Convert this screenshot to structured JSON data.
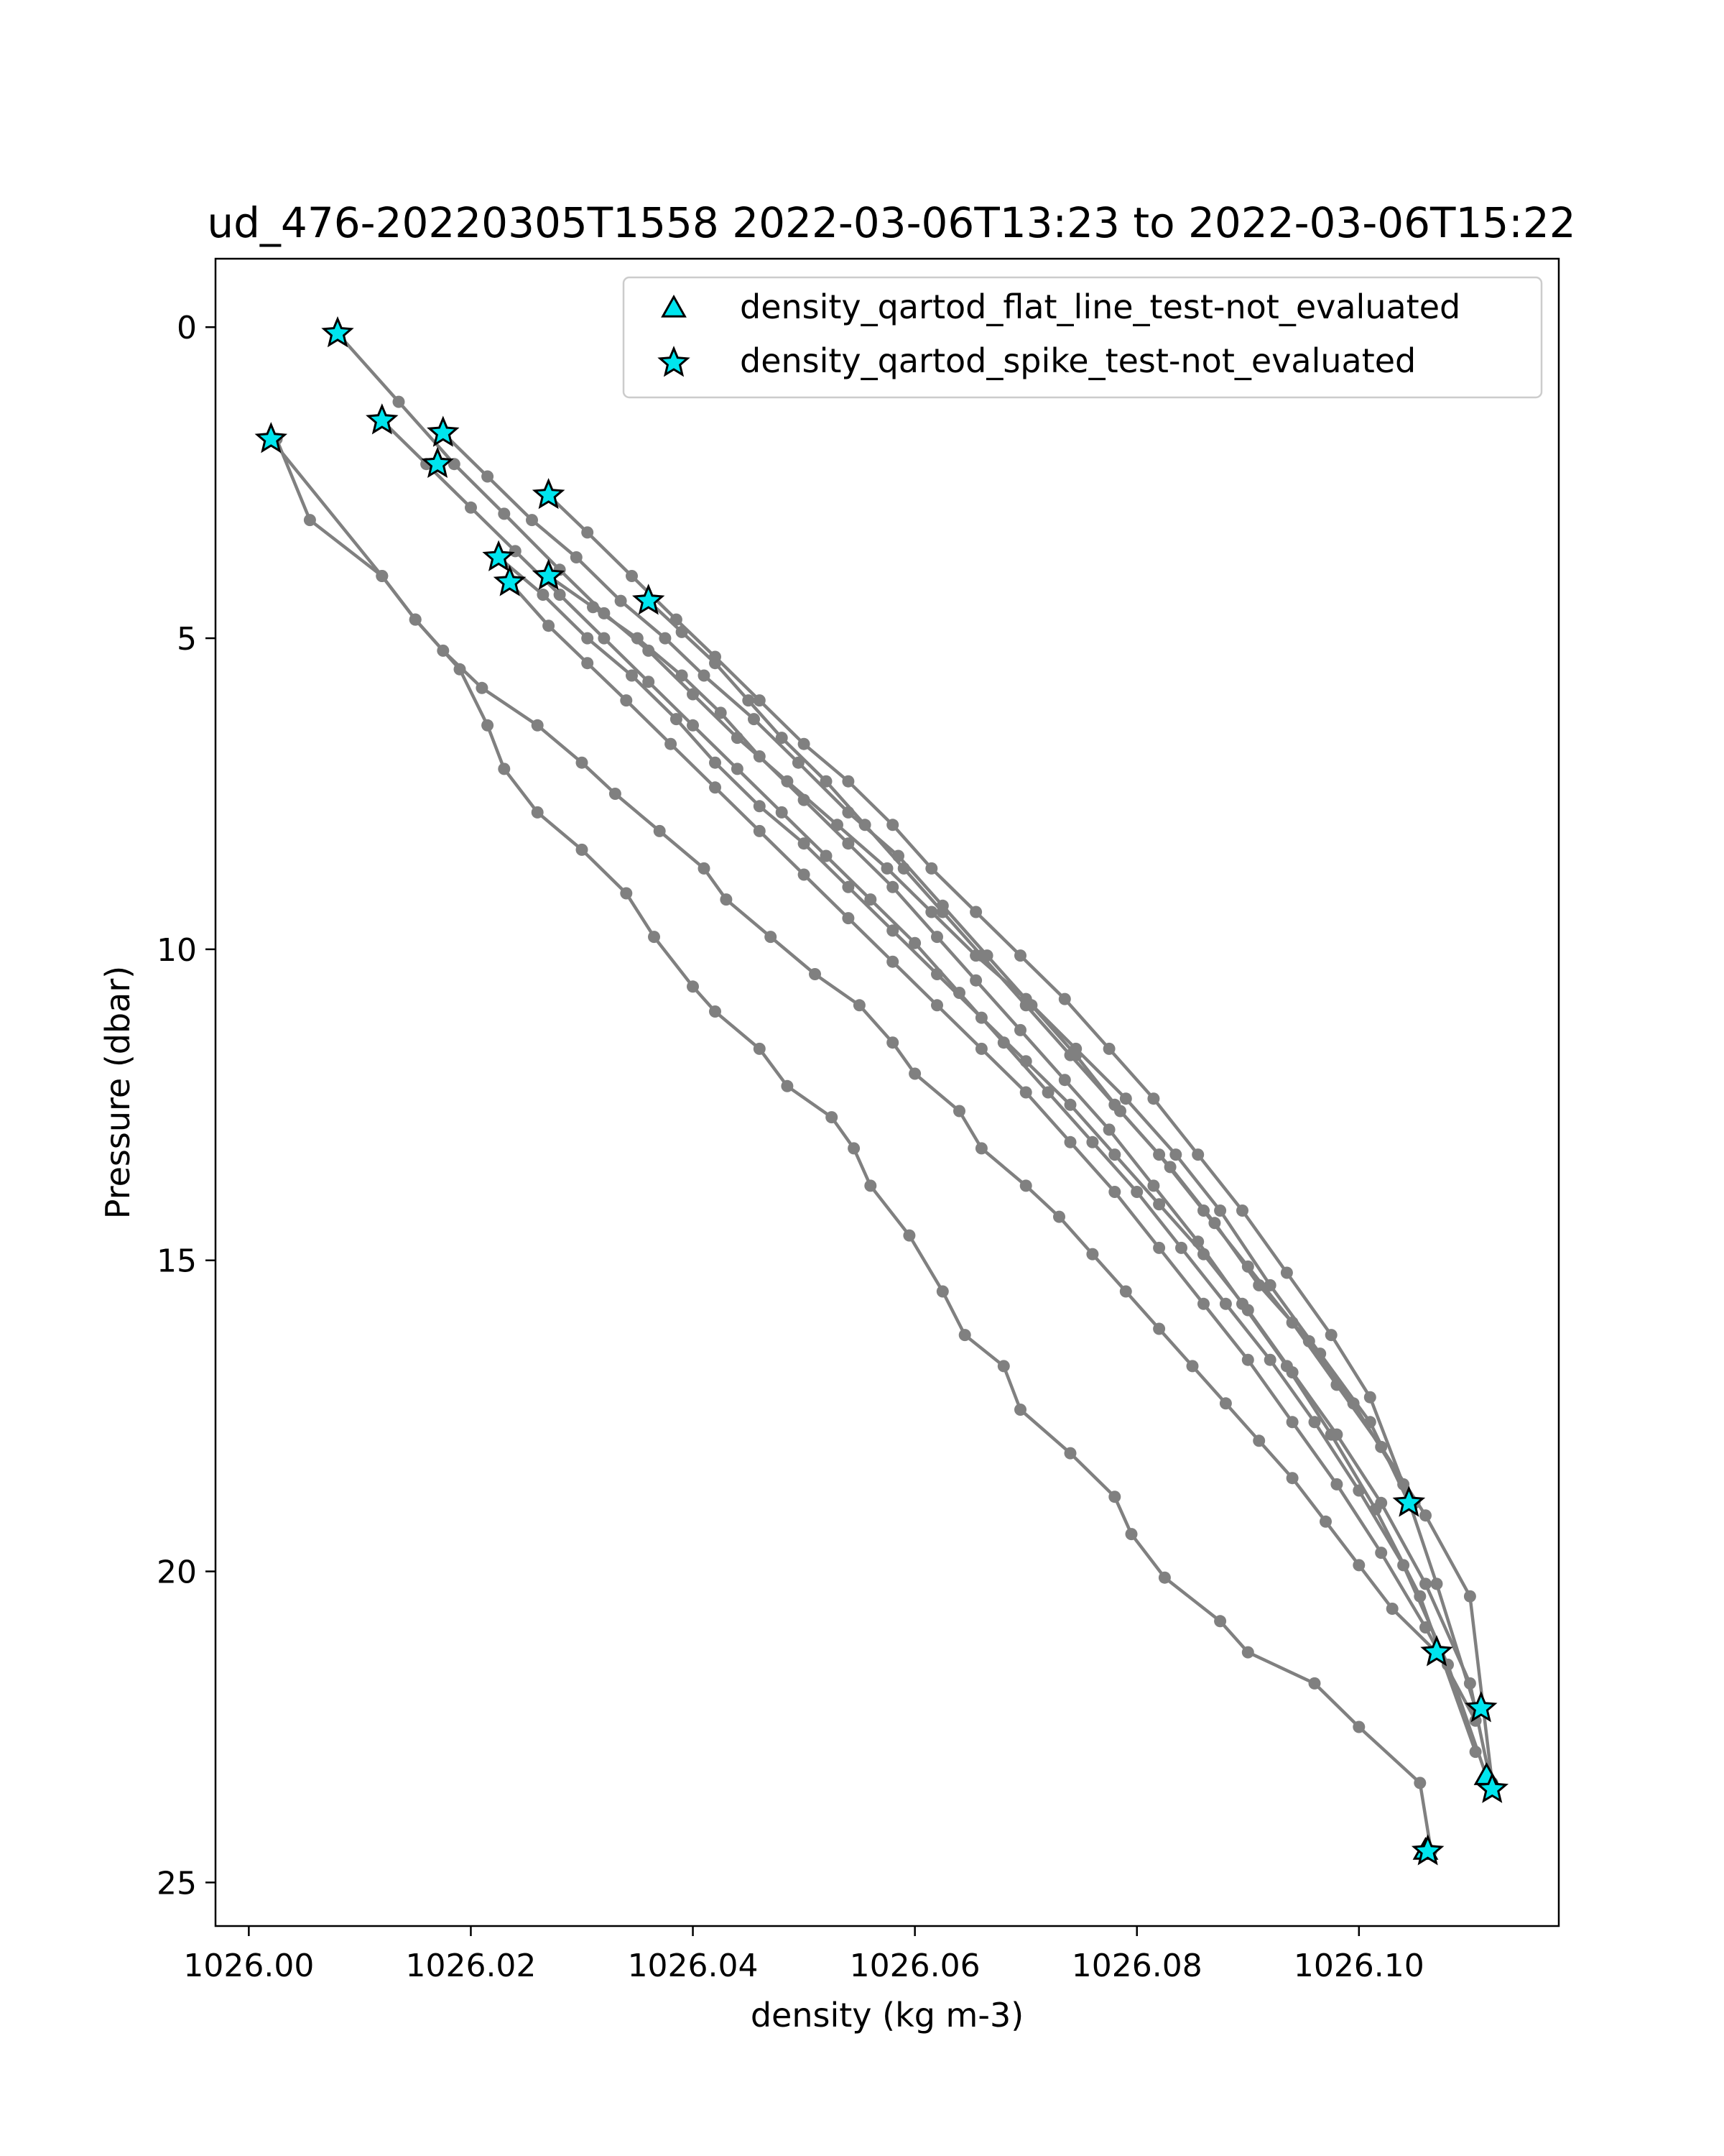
{
  "chart_data": {
    "type": "scatter",
    "title": "ud_476-20220305T1558 2022-03-06T13:23 to 2022-03-06T15:22",
    "xlabel": "density (kg m-3)",
    "ylabel": "Pressure (dbar)",
    "xlim": [
      1025.997,
      1026.118
    ],
    "ylim": [
      25.7,
      -1.1
    ],
    "y_inverted": true,
    "x_ticks": [
      1026.0,
      1026.02,
      1026.04,
      1026.06,
      1026.08,
      1026.1
    ],
    "x_tick_labels": [
      "1026.00",
      "1026.02",
      "1026.04",
      "1026.06",
      "1026.08",
      "1026.10"
    ],
    "y_ticks": [
      0,
      5,
      10,
      15,
      20,
      25
    ],
    "y_tick_labels": [
      "0",
      "5",
      "10",
      "15",
      "20",
      "25"
    ],
    "grid": false,
    "legend_position": "top-right",
    "line_color": "#808080",
    "marker_color": "#00e5ee",
    "profiles": [
      {
        "x": [
          1026.0025,
          1026.0055,
          1026.012,
          1026.015,
          1026.019,
          1026.0215,
          1026.023,
          1026.026,
          1026.03,
          1026.034,
          1026.0365,
          1026.04,
          1026.042,
          1026.046,
          1026.0485,
          1026.0525,
          1026.0545,
          1026.056,
          1026.0595,
          1026.0625,
          1026.0645,
          1026.068,
          1026.0695,
          1026.074,
          1026.078,
          1026.0795,
          1026.0825,
          1026.0875,
          1026.09,
          1026.096,
          1026.1,
          1026.1055,
          1026.1065
        ],
        "y": [
          1.8,
          3.1,
          4.0,
          4.7,
          5.5,
          6.4,
          7.1,
          7.8,
          8.4,
          9.1,
          9.8,
          10.6,
          11.0,
          11.6,
          12.2,
          12.7,
          13.2,
          13.8,
          14.6,
          15.5,
          16.2,
          16.7,
          17.4,
          18.1,
          18.8,
          19.4,
          20.1,
          20.8,
          21.3,
          21.8,
          22.5,
          23.4,
          24.5
        ]
      },
      {
        "x": [
          1026.002,
          1026.012,
          1026.015,
          1026.0175,
          1026.021,
          1026.026,
          1026.03,
          1026.033,
          1026.037,
          1026.041,
          1026.043,
          1026.047,
          1026.051,
          1026.055,
          1026.058,
          1026.06,
          1026.064,
          1026.066,
          1026.07,
          1026.073,
          1026.076,
          1026.079,
          1026.082,
          1026.085,
          1026.088,
          1026.091,
          1026.094,
          1026.097,
          1026.1,
          1026.103,
          1026.107
        ],
        "y": [
          1.8,
          4.0,
          4.7,
          5.2,
          5.8,
          6.4,
          7.0,
          7.5,
          8.1,
          8.7,
          9.2,
          9.8,
          10.4,
          10.9,
          11.5,
          12.0,
          12.6,
          13.2,
          13.8,
          14.3,
          14.9,
          15.5,
          16.1,
          16.7,
          17.3,
          17.9,
          18.5,
          19.2,
          19.9,
          20.6,
          21.3
        ]
      },
      {
        "x": [
          1026.008,
          1026.0135,
          1026.0185,
          1026.023,
          1026.028,
          1026.032,
          1026.036,
          1026.04,
          1026.044,
          1026.0485,
          1026.053,
          1026.0575,
          1026.0615,
          1026.0655,
          1026.07,
          1026.0745,
          1026.079,
          1026.0835,
          1026.0875,
          1026.092,
          1026.0965,
          1026.101,
          1026.1045
        ],
        "y": [
          0.1,
          1.2,
          2.2,
          3.0,
          3.9,
          4.6,
          5.2,
          5.9,
          6.6,
          7.3,
          8.0,
          8.7,
          9.4,
          10.1,
          10.8,
          11.6,
          12.4,
          13.3,
          14.2,
          15.4,
          16.5,
          17.6,
          18.9
        ]
      },
      {
        "x": [
          1026.0175,
          1026.0215,
          1026.0255,
          1026.0295,
          1026.0335,
          1026.0375,
          1026.041,
          1026.0455,
          1026.0495,
          1026.054,
          1026.0585,
          1026.0625,
          1026.0665,
          1026.0705,
          1026.0745,
          1026.0785,
          1026.083,
          1026.087,
          1026.091,
          1026.0955,
          1026.0995,
          1026.105
        ],
        "y": [
          1.7,
          2.4,
          3.1,
          3.7,
          4.4,
          5.0,
          5.6,
          6.3,
          7.0,
          7.8,
          8.5,
          9.3,
          10.1,
          10.9,
          11.7,
          12.6,
          13.5,
          14.4,
          15.4,
          16.3,
          17.3,
          18.9
        ]
      },
      {
        "x": [
          1026.027,
          1026.0305,
          1026.0345,
          1026.0385,
          1026.042,
          1026.046,
          1026.05,
          1026.054,
          1026.058,
          1026.0615,
          1026.0655,
          1026.0695,
          1026.0735,
          1026.0775,
          1026.0815,
          1026.0855,
          1026.0895,
          1026.0935,
          1026.0975,
          1026.101,
          1026.104,
          1026.107,
          1026.1105
        ],
        "y": [
          2.7,
          3.3,
          4.0,
          4.7,
          5.3,
          6.0,
          6.7,
          7.3,
          8.0,
          8.7,
          9.4,
          10.1,
          10.8,
          11.6,
          12.4,
          13.3,
          14.2,
          15.2,
          16.2,
          17.2,
          18.6,
          20.2,
          22.2
        ]
      },
      {
        "x": [
          1026.012,
          1026.016,
          1026.02,
          1026.024,
          1026.028,
          1026.032,
          1026.036,
          1026.04,
          1026.044,
          1026.048,
          1026.052,
          1026.056,
          1026.06,
          1026.064,
          1026.068,
          1026.072,
          1026.076,
          1026.08,
          1026.084,
          1026.088,
          1026.092,
          1026.096,
          1026.1,
          1026.104,
          1026.108,
          1026.1115
        ],
        "y": [
          1.5,
          2.2,
          2.9,
          3.6,
          4.3,
          5.0,
          5.7,
          6.4,
          7.1,
          7.8,
          8.5,
          9.2,
          9.9,
          10.7,
          11.5,
          12.3,
          13.1,
          13.9,
          14.8,
          15.7,
          16.6,
          17.6,
          18.7,
          19.9,
          21.5,
          23.3
        ]
      },
      {
        "x": [
          1026.0225,
          1026.0265,
          1026.0305,
          1026.0345,
          1026.0385,
          1026.042,
          1026.046,
          1026.05,
          1026.054,
          1026.058,
          1026.062,
          1026.066,
          1026.07,
          1026.074,
          1026.078,
          1026.082,
          1026.086,
          1026.09,
          1026.094,
          1026.098,
          1026.102,
          1026.106,
          1026.11,
          1026.112
        ],
        "y": [
          3.7,
          4.3,
          5.0,
          5.6,
          6.3,
          7.0,
          7.7,
          8.3,
          9.0,
          9.7,
          10.4,
          11.1,
          11.8,
          12.5,
          13.3,
          14.1,
          14.9,
          15.8,
          16.8,
          17.8,
          18.9,
          20.2,
          21.8,
          23.5
        ]
      },
      {
        "x": [
          1026.0235,
          1026.027,
          1026.0305,
          1026.034,
          1026.038,
          1026.042,
          1026.046,
          1026.05,
          1026.054,
          1026.058,
          1026.062,
          1026.066,
          1026.07,
          1026.074,
          1026.078,
          1026.082,
          1026.086,
          1026.09,
          1026.094,
          1026.098,
          1026.102,
          1026.106,
          1026.1105
        ],
        "y": [
          4.1,
          4.8,
          5.4,
          6.0,
          6.7,
          7.4,
          8.1,
          8.8,
          9.5,
          10.2,
          10.9,
          11.6,
          12.3,
          13.1,
          13.9,
          14.8,
          15.7,
          16.6,
          17.6,
          18.6,
          19.7,
          20.9,
          22.4
        ]
      },
      {
        "x": [
          1026.027,
          1026.031,
          1026.035,
          1026.039,
          1026.0425,
          1026.046,
          1026.05,
          1026.054,
          1026.058,
          1026.062,
          1026.0655,
          1026.0695,
          1026.0735,
          1026.0775,
          1026.0815,
          1026.0855,
          1026.0895,
          1026.0935,
          1026.0975,
          1026.1015,
          1026.1055,
          1026.1105
        ],
        "y": [
          4.0,
          4.5,
          5.0,
          5.6,
          6.2,
          6.9,
          7.6,
          8.3,
          9.0,
          9.8,
          10.5,
          11.3,
          12.1,
          12.9,
          13.8,
          14.7,
          15.7,
          16.7,
          17.8,
          19.0,
          20.4,
          22.9
        ]
      },
      {
        "x": [
          1026.036,
          1026.039,
          1026.042,
          1026.045,
          1026.048,
          1026.052,
          1026.0555,
          1026.059,
          1026.0625,
          1026.066,
          1026.07,
          1026.074,
          1026.078,
          1026.082,
          1026.086,
          1026.09,
          1026.094,
          1026.098,
          1026.102,
          1026.106,
          1026.11,
          1026.112
        ],
        "y": [
          4.4,
          4.9,
          5.4,
          6.0,
          6.6,
          7.3,
          8.0,
          8.7,
          9.4,
          10.1,
          10.9,
          11.7,
          12.5,
          13.3,
          14.2,
          15.1,
          16.0,
          17.0,
          18.0,
          19.1,
          20.4,
          23.4
        ]
      }
    ],
    "flagged_spike": {
      "x": [
        1026.008,
        1026.002,
        1026.012,
        1026.0175,
        1026.017,
        1026.027,
        1026.0225,
        1026.0235,
        1026.027,
        1026.036,
        1026.1045,
        1026.107,
        1026.111,
        1026.112,
        1026.1062
      ],
      "y": [
        0.1,
        1.8,
        1.5,
        1.7,
        2.2,
        2.7,
        3.7,
        4.1,
        4.0,
        4.4,
        18.9,
        21.3,
        22.2,
        23.5,
        24.5
      ]
    },
    "flagged_flat_line": {
      "x": [
        1026.1115,
        1026.106
      ],
      "y": [
        23.3,
        24.5
      ]
    },
    "legend": [
      {
        "label": "density_qartod_flat_line_test-not_evaluated",
        "marker": "triangle"
      },
      {
        "label": "density_qartod_spike_test-not_evaluated",
        "marker": "star"
      }
    ]
  }
}
